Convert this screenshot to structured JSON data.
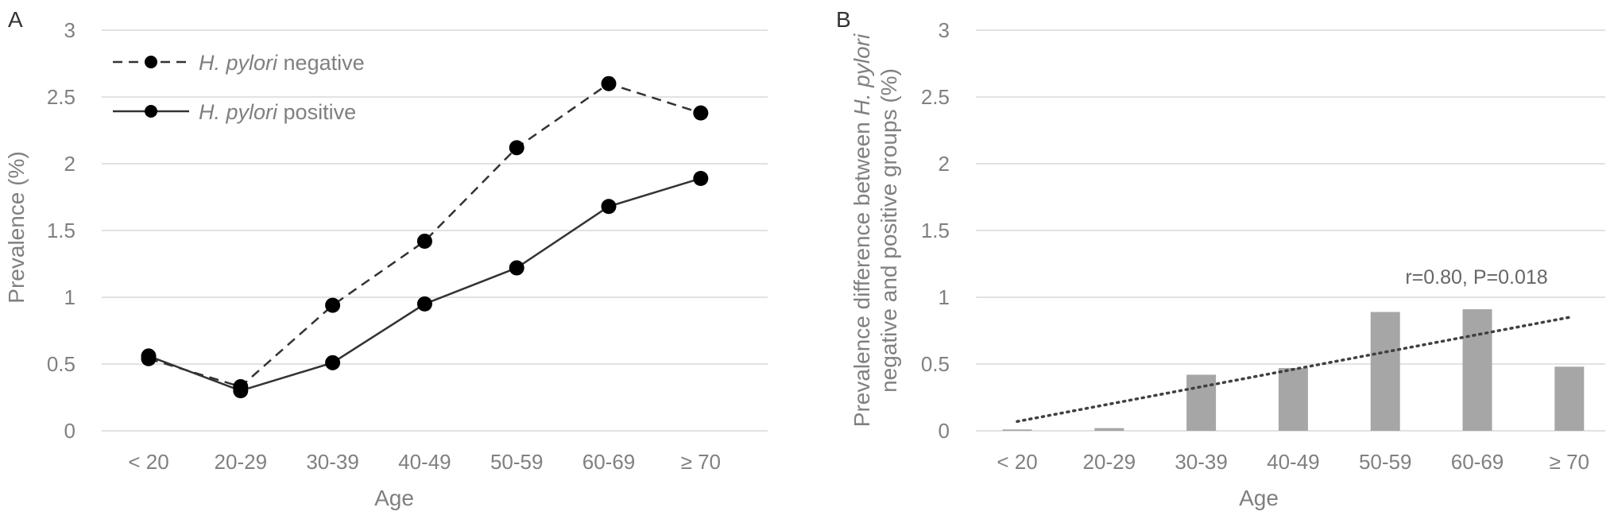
{
  "chart_data": [
    {
      "panel": "A",
      "type": "line",
      "categories": [
        "< 20",
        "20-29",
        "30-39",
        "40-49",
        "50-59",
        "60-69",
        "≥ 70"
      ],
      "series": [
        {
          "name_italic": "H. pylori",
          "name_rest": " negative",
          "style": "dashed",
          "values": [
            0.54,
            0.33,
            0.94,
            1.42,
            2.12,
            2.6,
            2.38
          ]
        },
        {
          "name_italic": "H. pylori",
          "name_rest": " positive",
          "style": "solid",
          "values": [
            0.56,
            0.3,
            0.51,
            0.95,
            1.22,
            1.68,
            1.89
          ]
        }
      ],
      "xlabel": "Age",
      "ylabel": "Prevalence (%)",
      "ylim": [
        0,
        3
      ],
      "yticks": [
        "0",
        "0.5",
        "1",
        "1.5",
        "2",
        "2.5",
        "3"
      ],
      "grid": true,
      "legend": "top-left"
    },
    {
      "panel": "B",
      "type": "bar",
      "categories": [
        "< 20",
        "20-29",
        "30-39",
        "40-49",
        "50-59",
        "60-69",
        "≥ 70"
      ],
      "values": [
        0.01,
        0.02,
        0.42,
        0.47,
        0.89,
        0.91,
        0.48
      ],
      "trendline": {
        "type": "linear",
        "start": 0.07,
        "end": 0.85
      },
      "annotation": "r=0.80, P=0.018",
      "xlabel": "Age",
      "ylabel_line1_pre": "Prevalence difference between ",
      "ylabel_line1_italic": "H. pylori",
      "ylabel_line2": "negative and positive groups (%)",
      "ylim": [
        0,
        3
      ],
      "yticks": [
        "0",
        "0.5",
        "1",
        "1.5",
        "2",
        "2.5",
        "3"
      ],
      "grid": true
    }
  ]
}
